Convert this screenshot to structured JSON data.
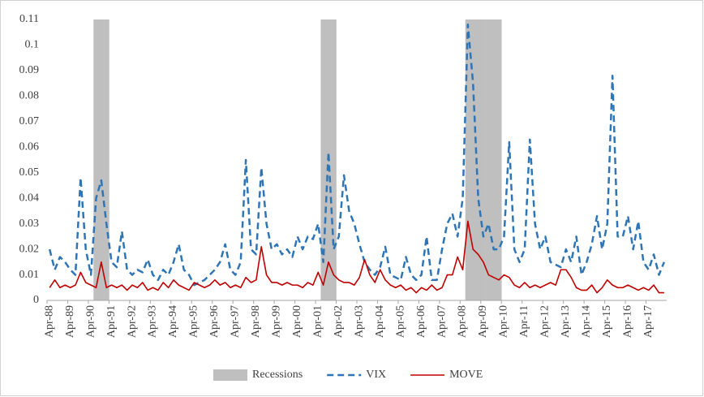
{
  "chart_data": {
    "type": "line",
    "categories": [
      "Apr-88",
      null,
      null,
      null,
      "Apr-89",
      null,
      null,
      null,
      "Apr-90",
      null,
      null,
      null,
      "Apr-91",
      null,
      null,
      null,
      "Apr-92",
      null,
      null,
      null,
      "Apr-93",
      null,
      null,
      null,
      "Apr-94",
      null,
      null,
      null,
      "Apr-95",
      null,
      null,
      null,
      "Apr-96",
      null,
      null,
      null,
      "Apr-97",
      null,
      null,
      null,
      "Apr-98",
      null,
      null,
      null,
      "Apr-99",
      null,
      null,
      null,
      "Apr-00",
      null,
      null,
      null,
      "Apr-01",
      null,
      null,
      null,
      "Apr-02",
      null,
      null,
      null,
      "Apr-03",
      null,
      null,
      null,
      "Apr-04",
      null,
      null,
      null,
      "Apr-05",
      null,
      null,
      null,
      "Apr-06",
      null,
      null,
      null,
      "Apr-07",
      null,
      null,
      null,
      "Apr-08",
      null,
      null,
      null,
      "Apr-09",
      null,
      null,
      null,
      "Apr-10",
      null,
      null,
      null,
      "Apr-11",
      null,
      null,
      null,
      "Apr-12",
      null,
      null,
      null,
      "Apr-13",
      null,
      null,
      null,
      "Apr-14",
      null,
      null,
      null,
      "Apr-15",
      null,
      null,
      null,
      "Apr-16",
      null,
      null,
      null,
      "Apr-17",
      null,
      null,
      null
    ],
    "series": [
      {
        "name": "Recessions",
        "kind": "column",
        "color": "#bfbfbf",
        "values": [
          null,
          null,
          null,
          null,
          null,
          null,
          null,
          null,
          null,
          0.11,
          0.11,
          0.11,
          null,
          null,
          null,
          null,
          null,
          null,
          null,
          null,
          null,
          null,
          null,
          null,
          null,
          null,
          null,
          null,
          null,
          null,
          null,
          null,
          null,
          null,
          null,
          null,
          null,
          null,
          null,
          null,
          null,
          null,
          null,
          null,
          null,
          null,
          null,
          null,
          null,
          null,
          null,
          null,
          null,
          0.11,
          0.11,
          0.11,
          null,
          null,
          null,
          null,
          null,
          null,
          null,
          null,
          null,
          null,
          null,
          null,
          null,
          null,
          null,
          null,
          null,
          null,
          null,
          null,
          null,
          null,
          null,
          null,
          null,
          0.11,
          0.11,
          0.11,
          0.11,
          0.11,
          0.11,
          0.11,
          null,
          null,
          null,
          null,
          null,
          null,
          null,
          null,
          null,
          null,
          null,
          null,
          null,
          null,
          null,
          null,
          null,
          null,
          null,
          null,
          null,
          null,
          null,
          null,
          null,
          null,
          null,
          null,
          null,
          null,
          null,
          null
        ]
      },
      {
        "name": "VIX",
        "kind": "line",
        "dashed": true,
        "color": "#2e75b6",
        "values": [
          0.02,
          0.012,
          0.017,
          0.015,
          0.012,
          0.01,
          0.048,
          0.02,
          0.01,
          0.04,
          0.047,
          0.03,
          0.015,
          0.013,
          0.027,
          0.012,
          0.01,
          0.012,
          0.011,
          0.016,
          0.01,
          0.008,
          0.012,
          0.01,
          0.015,
          0.022,
          0.012,
          0.01,
          0.006,
          0.007,
          0.008,
          0.01,
          0.012,
          0.015,
          0.022,
          0.012,
          0.01,
          0.015,
          0.055,
          0.02,
          0.018,
          0.052,
          0.03,
          0.02,
          0.022,
          0.018,
          0.02,
          0.017,
          0.025,
          0.02,
          0.025,
          0.024,
          0.03,
          0.015,
          0.058,
          0.02,
          0.025,
          0.049,
          0.035,
          0.03,
          0.022,
          0.015,
          0.012,
          0.01,
          0.013,
          0.021,
          0.01,
          0.009,
          0.008,
          0.017,
          0.01,
          0.008,
          0.01,
          0.025,
          0.008,
          0.008,
          0.02,
          0.03,
          0.034,
          0.025,
          0.04,
          0.108,
          0.085,
          0.04,
          0.025,
          0.03,
          0.02,
          0.02,
          0.025,
          0.062,
          0.02,
          0.015,
          0.02,
          0.063,
          0.03,
          0.02,
          0.025,
          0.015,
          0.014,
          0.013,
          0.02,
          0.015,
          0.025,
          0.01,
          0.015,
          0.022,
          0.033,
          0.02,
          0.03,
          0.088,
          0.025,
          0.025,
          0.033,
          0.02,
          0.031,
          0.015,
          0.012,
          0.018,
          0.01,
          0.015
        ]
      },
      {
        "name": "MOVE",
        "kind": "line",
        "dashed": false,
        "color": "#c00000",
        "values": [
          0.005,
          0.008,
          0.005,
          0.006,
          0.005,
          0.006,
          0.011,
          0.007,
          0.006,
          0.005,
          0.015,
          0.005,
          0.006,
          0.005,
          0.006,
          0.004,
          0.006,
          0.005,
          0.007,
          0.004,
          0.005,
          0.004,
          0.007,
          0.005,
          0.008,
          0.006,
          0.005,
          0.004,
          0.007,
          0.006,
          0.005,
          0.006,
          0.008,
          0.006,
          0.007,
          0.005,
          0.006,
          0.005,
          0.009,
          0.007,
          0.008,
          0.021,
          0.01,
          0.007,
          0.007,
          0.006,
          0.007,
          0.006,
          0.006,
          0.005,
          0.007,
          0.006,
          0.011,
          0.006,
          0.015,
          0.01,
          0.008,
          0.007,
          0.007,
          0.006,
          0.009,
          0.016,
          0.01,
          0.007,
          0.012,
          0.008,
          0.006,
          0.005,
          0.006,
          0.004,
          0.005,
          0.003,
          0.005,
          0.004,
          0.006,
          0.004,
          0.005,
          0.01,
          0.01,
          0.017,
          0.012,
          0.031,
          0.02,
          0.018,
          0.015,
          0.01,
          0.009,
          0.008,
          0.01,
          0.009,
          0.006,
          0.005,
          0.007,
          0.005,
          0.006,
          0.005,
          0.006,
          0.007,
          0.006,
          0.012,
          0.012,
          0.009,
          0.005,
          0.004,
          0.004,
          0.006,
          0.003,
          0.005,
          0.008,
          0.006,
          0.005,
          0.005,
          0.006,
          0.005,
          0.004,
          0.005,
          0.004,
          0.006,
          0.003,
          0.003
        ]
      }
    ],
    "ylim": [
      0,
      0.11
    ],
    "yticks": [
      0,
      0.01,
      0.02,
      0.03,
      0.04,
      0.05,
      0.06,
      0.07,
      0.08,
      0.09,
      0.1,
      0.11
    ],
    "grid": false,
    "legend": "bottom"
  }
}
